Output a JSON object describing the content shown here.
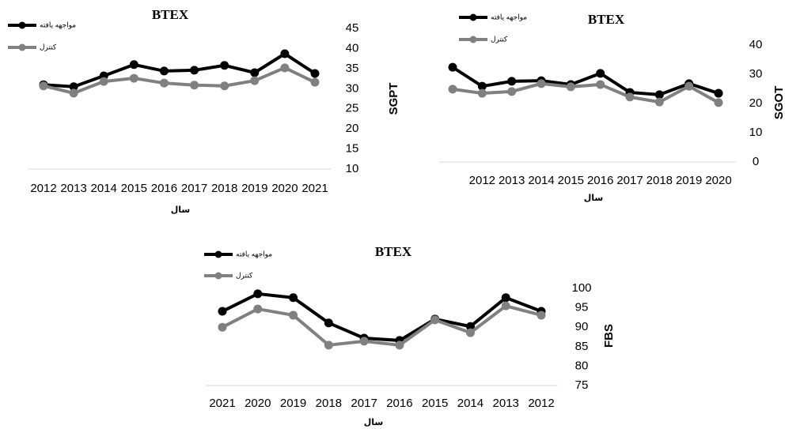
{
  "chart_data": [
    {
      "type": "line",
      "title": "BTEX",
      "x_label": "سال",
      "y_label": "SGPT",
      "categories": [
        "2012",
        "2013",
        "2014",
        "2015",
        "2016",
        "2017",
        "2018",
        "2019",
        "2020",
        "2021"
      ],
      "series": [
        {
          "name": "مواجهه یافته",
          "color": "#000000",
          "values": [
            31.0,
            30.5,
            33.2,
            36.0,
            34.4,
            34.6,
            35.8,
            34.0,
            38.7,
            33.8
          ]
        },
        {
          "name": "کنترل",
          "color": "#808080",
          "values": [
            30.7,
            28.9,
            31.8,
            32.6,
            31.4,
            30.9,
            30.7,
            32.0,
            35.2,
            31.6
          ]
        }
      ],
      "ylim": [
        10,
        45
      ],
      "yticks": [
        10,
        15,
        20,
        25,
        30,
        35,
        40,
        45
      ],
      "grid": false,
      "legend": "top-left"
    },
    {
      "type": "line",
      "title": "BTEX",
      "x_label": "سال",
      "y_label": "SGOT",
      "categories": [
        null,
        "2012",
        "2013",
        "2014",
        "2015",
        "2016",
        "2017",
        "2018",
        "2019",
        "2020"
      ],
      "series": [
        {
          "name": "مواجهه یافته",
          "color": "#000000",
          "values": [
            32.4,
            25.9,
            27.6,
            27.8,
            26.5,
            30.3,
            23.8,
            23.0,
            26.8,
            23.5
          ]
        },
        {
          "name": "کنترل",
          "color": "#808080",
          "values": [
            24.9,
            23.5,
            24.1,
            26.8,
            25.7,
            26.5,
            22.2,
            20.5,
            25.9,
            20.3
          ]
        }
      ],
      "ylim": [
        0,
        40
      ],
      "yticks": [
        0,
        10,
        20,
        30,
        40
      ],
      "grid": false,
      "legend": "top-left"
    },
    {
      "type": "line",
      "title": "BTEX",
      "x_label": "سال",
      "y_label": "FBS",
      "categories": [
        "2021",
        "2020",
        "2019",
        "2018",
        "2017",
        "2016",
        "2015",
        "2014",
        "2013",
        "2012"
      ],
      "series": [
        {
          "name": "مواجهه یافته",
          "color": "#000000",
          "values": [
            94.1,
            98.6,
            97.6,
            91.1,
            87.2,
            86.6,
            92.1,
            90.2,
            97.6,
            94.1
          ]
        },
        {
          "name": "کنترل",
          "color": "#808080",
          "values": [
            90.0,
            94.7,
            93.1,
            85.4,
            86.4,
            85.4,
            91.9,
            88.6,
            95.5,
            93.1
          ]
        }
      ],
      "ylim": [
        75,
        100
      ],
      "yticks": [
        75,
        80,
        85,
        90,
        95,
        100
      ],
      "grid": false,
      "legend": "top-left"
    }
  ]
}
